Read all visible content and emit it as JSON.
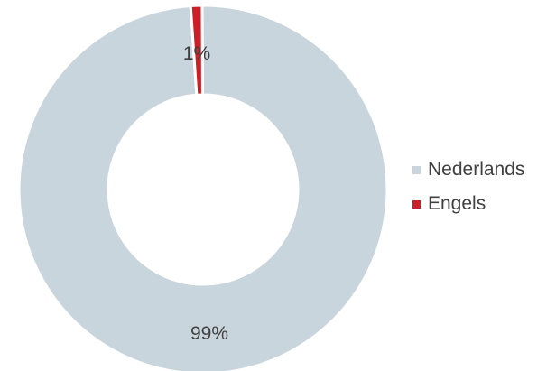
{
  "chart_data": {
    "type": "pie",
    "variant": "donut",
    "categories": [
      "Nederlands",
      "Engels"
    ],
    "values": [
      99,
      1
    ],
    "value_labels": [
      "99%",
      "1%"
    ],
    "colors": [
      "#c9d5dc",
      "#cc1f27"
    ],
    "title": "",
    "legend": {
      "position": "right",
      "entries": [
        "Nederlands",
        "Engels"
      ]
    }
  }
}
